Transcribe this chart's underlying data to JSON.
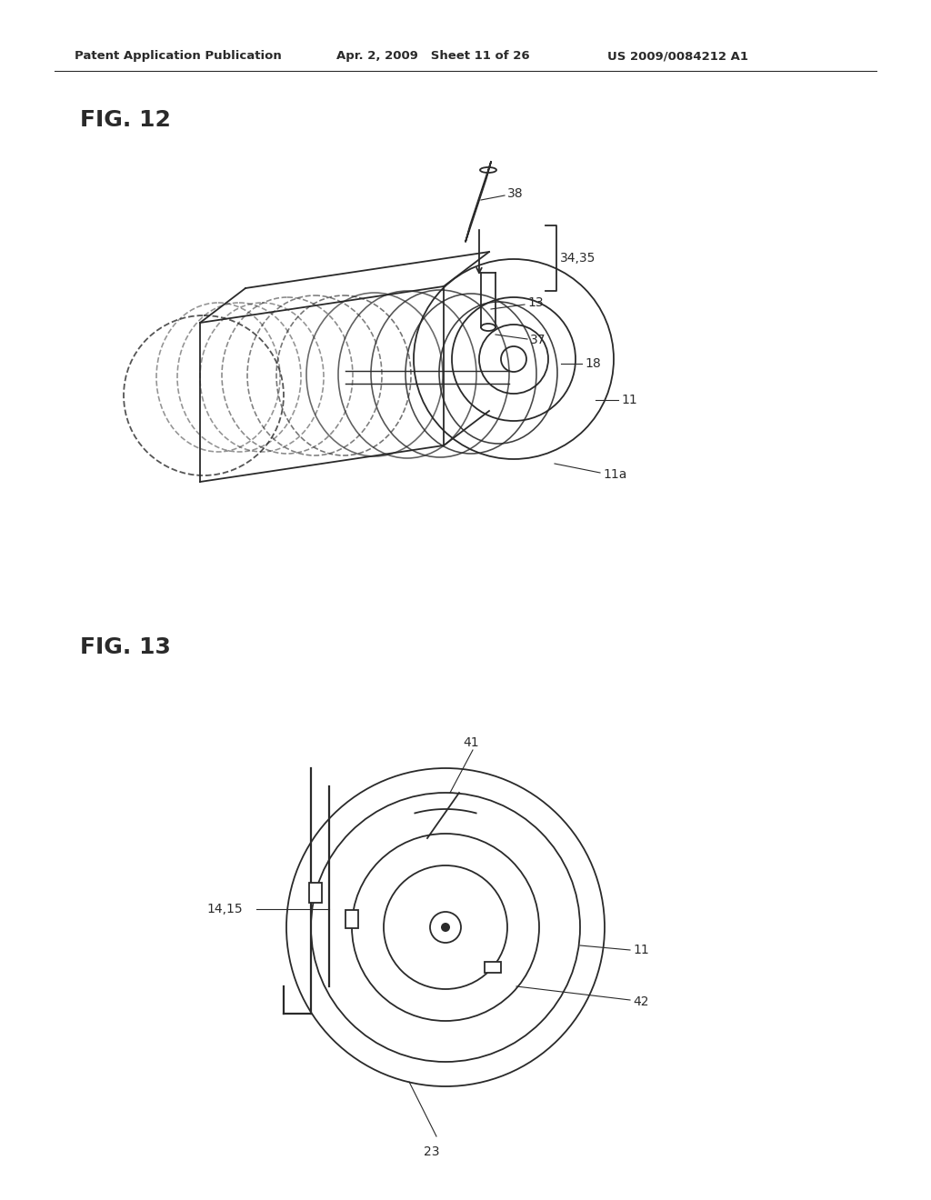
{
  "bg_color": "#ffffff",
  "header_left": "Patent Application Publication",
  "header_mid": "Apr. 2, 2009   Sheet 11 of 26",
  "header_right": "US 2009/0084212 A1",
  "fig12_label": "FIG. 12",
  "fig13_label": "FIG. 13",
  "line_color": "#2a2a2a",
  "font_size_header": 9.5,
  "font_size_fig": 18,
  "font_size_label": 10
}
